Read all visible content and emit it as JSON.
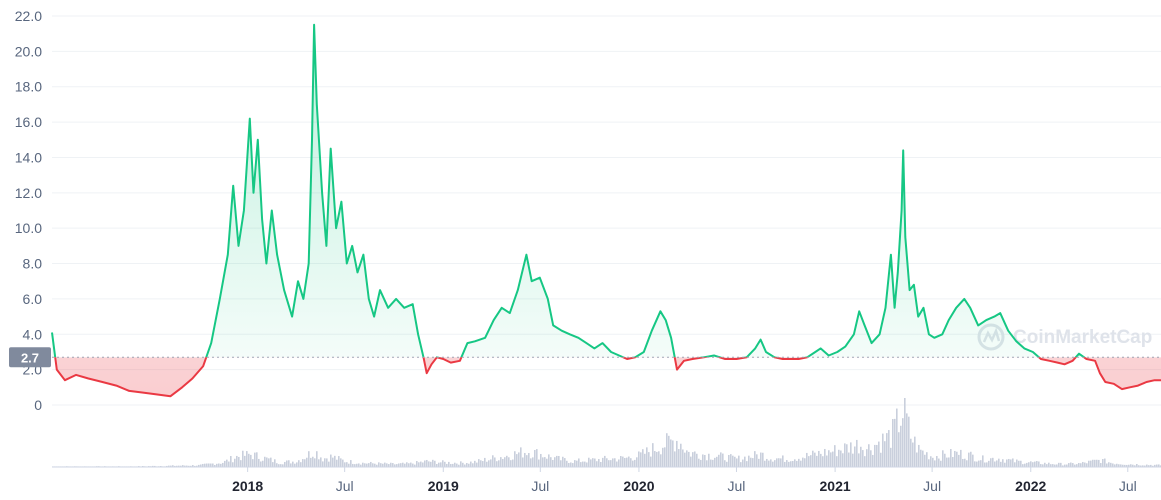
{
  "chart_data": {
    "type": "area",
    "baseline": 2.7,
    "baseline_label": "2.7",
    "watermark": "CoinMarketCap",
    "colors": {
      "above": "#16c784",
      "below": "#ea3943",
      "volume": "#c9cfdc",
      "baseline_badge": "#808a9d"
    },
    "ylim": [
      0,
      22
    ],
    "y_ticks": [
      {
        "v": 0,
        "label": "0"
      },
      {
        "v": 2,
        "label": "2.0"
      },
      {
        "v": 4,
        "label": "4.0"
      },
      {
        "v": 6,
        "label": "6.0"
      },
      {
        "v": 8,
        "label": "8.0"
      },
      {
        "v": 10,
        "label": "10.0"
      },
      {
        "v": 12,
        "label": "12.0"
      },
      {
        "v": 14,
        "label": "14.0"
      },
      {
        "v": 16,
        "label": "16.0"
      },
      {
        "v": 18,
        "label": "18.0"
      },
      {
        "v": 20,
        "label": "20.0"
      },
      {
        "v": 22,
        "label": "22.0"
      }
    ],
    "xlim": [
      "2017-01-01",
      "2022-09-01"
    ],
    "x_ticks": [
      {
        "date": "2018-01-01",
        "label": "2018",
        "major": true
      },
      {
        "date": "2018-07-01",
        "label": "Jul",
        "major": false
      },
      {
        "date": "2019-01-01",
        "label": "2019",
        "major": true
      },
      {
        "date": "2019-07-01",
        "label": "Jul",
        "major": false
      },
      {
        "date": "2020-01-01",
        "label": "2020",
        "major": true
      },
      {
        "date": "2020-07-01",
        "label": "Jul",
        "major": false
      },
      {
        "date": "2021-01-01",
        "label": "2021",
        "major": true
      },
      {
        "date": "2021-07-01",
        "label": "Jul",
        "major": false
      },
      {
        "date": "2022-01-01",
        "label": "2022",
        "major": true
      },
      {
        "date": "2022-07-01",
        "label": "Jul",
        "major": false
      }
    ],
    "price": [
      [
        "2017-01-01",
        4.1
      ],
      [
        "2017-01-10",
        2.0
      ],
      [
        "2017-01-25",
        1.4
      ],
      [
        "2017-02-15",
        1.7
      ],
      [
        "2017-03-10",
        1.5
      ],
      [
        "2017-04-05",
        1.3
      ],
      [
        "2017-05-01",
        1.1
      ],
      [
        "2017-05-25",
        0.8
      ],
      [
        "2017-06-20",
        0.7
      ],
      [
        "2017-07-15",
        0.6
      ],
      [
        "2017-08-10",
        0.5
      ],
      [
        "2017-09-01",
        1.0
      ],
      [
        "2017-09-20",
        1.5
      ],
      [
        "2017-10-10",
        2.2
      ],
      [
        "2017-10-25",
        3.5
      ],
      [
        "2017-11-10",
        6.0
      ],
      [
        "2017-11-25",
        8.5
      ],
      [
        "2017-12-05",
        12.4
      ],
      [
        "2017-12-15",
        9.0
      ],
      [
        "2017-12-25",
        11.0
      ],
      [
        "2018-01-05",
        16.2
      ],
      [
        "2018-01-12",
        12.0
      ],
      [
        "2018-01-20",
        15.0
      ],
      [
        "2018-01-28",
        10.5
      ],
      [
        "2018-02-05",
        8.0
      ],
      [
        "2018-02-15",
        11.0
      ],
      [
        "2018-02-25",
        8.5
      ],
      [
        "2018-03-10",
        6.5
      ],
      [
        "2018-03-25",
        5.0
      ],
      [
        "2018-04-05",
        7.0
      ],
      [
        "2018-04-15",
        6.0
      ],
      [
        "2018-04-25",
        8.0
      ],
      [
        "2018-05-01",
        15.0
      ],
      [
        "2018-05-05",
        21.5
      ],
      [
        "2018-05-10",
        17.0
      ],
      [
        "2018-05-20",
        12.0
      ],
      [
        "2018-05-28",
        9.0
      ],
      [
        "2018-06-05",
        14.5
      ],
      [
        "2018-06-15",
        10.0
      ],
      [
        "2018-06-25",
        11.5
      ],
      [
        "2018-07-05",
        8.0
      ],
      [
        "2018-07-15",
        9.0
      ],
      [
        "2018-07-25",
        7.5
      ],
      [
        "2018-08-05",
        8.5
      ],
      [
        "2018-08-15",
        6.0
      ],
      [
        "2018-08-25",
        5.0
      ],
      [
        "2018-09-05",
        6.5
      ],
      [
        "2018-09-20",
        5.5
      ],
      [
        "2018-10-05",
        6.0
      ],
      [
        "2018-10-20",
        5.5
      ],
      [
        "2018-11-05",
        5.7
      ],
      [
        "2018-11-15",
        4.0
      ],
      [
        "2018-11-25",
        2.7
      ],
      [
        "2018-12-01",
        1.8
      ],
      [
        "2018-12-10",
        2.3
      ],
      [
        "2018-12-20",
        2.7
      ],
      [
        "2019-01-01",
        2.6
      ],
      [
        "2019-01-15",
        2.4
      ],
      [
        "2019-02-01",
        2.5
      ],
      [
        "2019-02-15",
        3.5
      ],
      [
        "2019-03-01",
        3.6
      ],
      [
        "2019-03-20",
        3.8
      ],
      [
        "2019-04-05",
        4.8
      ],
      [
        "2019-04-20",
        5.5
      ],
      [
        "2019-05-05",
        5.2
      ],
      [
        "2019-05-20",
        6.5
      ],
      [
        "2019-06-05",
        8.5
      ],
      [
        "2019-06-15",
        7.0
      ],
      [
        "2019-06-30",
        7.2
      ],
      [
        "2019-07-15",
        6.0
      ],
      [
        "2019-07-25",
        4.5
      ],
      [
        "2019-08-10",
        4.2
      ],
      [
        "2019-08-25",
        4.0
      ],
      [
        "2019-09-10",
        3.8
      ],
      [
        "2019-09-25",
        3.5
      ],
      [
        "2019-10-10",
        3.2
      ],
      [
        "2019-10-25",
        3.5
      ],
      [
        "2019-11-10",
        3.0
      ],
      [
        "2019-11-25",
        2.8
      ],
      [
        "2019-12-10",
        2.6
      ],
      [
        "2019-12-25",
        2.7
      ],
      [
        "2020-01-10",
        3.0
      ],
      [
        "2020-01-25",
        4.2
      ],
      [
        "2020-02-10",
        5.3
      ],
      [
        "2020-02-20",
        4.8
      ],
      [
        "2020-03-01",
        3.8
      ],
      [
        "2020-03-12",
        2.0
      ],
      [
        "2020-03-25",
        2.5
      ],
      [
        "2020-04-10",
        2.6
      ],
      [
        "2020-05-01",
        2.7
      ],
      [
        "2020-05-20",
        2.8
      ],
      [
        "2020-06-10",
        2.6
      ],
      [
        "2020-07-01",
        2.6
      ],
      [
        "2020-07-20",
        2.7
      ],
      [
        "2020-08-05",
        3.2
      ],
      [
        "2020-08-15",
        3.7
      ],
      [
        "2020-08-25",
        3.0
      ],
      [
        "2020-09-10",
        2.7
      ],
      [
        "2020-09-25",
        2.6
      ],
      [
        "2020-10-10",
        2.6
      ],
      [
        "2020-10-25",
        2.6
      ],
      [
        "2020-11-10",
        2.7
      ],
      [
        "2020-11-25",
        3.0
      ],
      [
        "2020-12-05",
        3.2
      ],
      [
        "2020-12-20",
        2.8
      ],
      [
        "2021-01-05",
        3.0
      ],
      [
        "2021-01-20",
        3.3
      ],
      [
        "2021-02-05",
        4.0
      ],
      [
        "2021-02-15",
        5.3
      ],
      [
        "2021-02-25",
        4.5
      ],
      [
        "2021-03-10",
        3.5
      ],
      [
        "2021-03-25",
        4.0
      ],
      [
        "2021-04-05",
        5.5
      ],
      [
        "2021-04-15",
        8.5
      ],
      [
        "2021-04-22",
        5.5
      ],
      [
        "2021-04-28",
        7.5
      ],
      [
        "2021-05-05",
        11.0
      ],
      [
        "2021-05-08",
        14.4
      ],
      [
        "2021-05-12",
        9.5
      ],
      [
        "2021-05-20",
        6.5
      ],
      [
        "2021-05-28",
        6.8
      ],
      [
        "2021-06-05",
        5.0
      ],
      [
        "2021-06-15",
        5.5
      ],
      [
        "2021-06-25",
        4.0
      ],
      [
        "2021-07-05",
        3.8
      ],
      [
        "2021-07-20",
        4.0
      ],
      [
        "2021-08-01",
        4.8
      ],
      [
        "2021-08-15",
        5.5
      ],
      [
        "2021-08-30",
        6.0
      ],
      [
        "2021-09-10",
        5.5
      ],
      [
        "2021-09-25",
        4.5
      ],
      [
        "2021-10-10",
        4.8
      ],
      [
        "2021-10-25",
        5.0
      ],
      [
        "2021-11-05",
        5.2
      ],
      [
        "2021-11-20",
        4.2
      ],
      [
        "2021-12-05",
        3.6
      ],
      [
        "2021-12-20",
        3.2
      ],
      [
        "2022-01-05",
        3.0
      ],
      [
        "2022-01-20",
        2.6
      ],
      [
        "2022-02-05",
        2.5
      ],
      [
        "2022-02-20",
        2.4
      ],
      [
        "2022-03-05",
        2.3
      ],
      [
        "2022-03-20",
        2.5
      ],
      [
        "2022-04-01",
        2.9
      ],
      [
        "2022-04-15",
        2.6
      ],
      [
        "2022-05-01",
        2.5
      ],
      [
        "2022-05-10",
        1.8
      ],
      [
        "2022-05-20",
        1.3
      ],
      [
        "2022-06-05",
        1.2
      ],
      [
        "2022-06-20",
        0.9
      ],
      [
        "2022-07-05",
        1.0
      ],
      [
        "2022-07-20",
        1.1
      ],
      [
        "2022-08-05",
        1.3
      ],
      [
        "2022-08-20",
        1.4
      ],
      [
        "2022-09-01",
        1.4
      ]
    ],
    "volume": [
      [
        "2017-01-01",
        0.01
      ],
      [
        "2017-06-01",
        0.01
      ],
      [
        "2017-10-01",
        0.03
      ],
      [
        "2017-11-15",
        0.08
      ],
      [
        "2017-12-10",
        0.18
      ],
      [
        "2018-01-05",
        0.22
      ],
      [
        "2018-02-01",
        0.15
      ],
      [
        "2018-03-01",
        0.08
      ],
      [
        "2018-04-01",
        0.1
      ],
      [
        "2018-05-05",
        0.28
      ],
      [
        "2018-05-20",
        0.15
      ],
      [
        "2018-06-05",
        0.18
      ],
      [
        "2018-07-01",
        0.1
      ],
      [
        "2018-08-01",
        0.07
      ],
      [
        "2018-09-01",
        0.06
      ],
      [
        "2018-10-01",
        0.05
      ],
      [
        "2018-11-01",
        0.06
      ],
      [
        "2018-12-01",
        0.1
      ],
      [
        "2019-01-01",
        0.08
      ],
      [
        "2019-02-01",
        0.07
      ],
      [
        "2019-03-01",
        0.09
      ],
      [
        "2019-04-01",
        0.15
      ],
      [
        "2019-05-01",
        0.2
      ],
      [
        "2019-06-05",
        0.28
      ],
      [
        "2019-07-01",
        0.22
      ],
      [
        "2019-08-01",
        0.14
      ],
      [
        "2019-09-01",
        0.1
      ],
      [
        "2019-10-01",
        0.12
      ],
      [
        "2019-11-01",
        0.14
      ],
      [
        "2019-12-01",
        0.15
      ],
      [
        "2020-01-01",
        0.2
      ],
      [
        "2020-02-10",
        0.38
      ],
      [
        "2020-03-12",
        0.48
      ],
      [
        "2020-04-01",
        0.25
      ],
      [
        "2020-05-01",
        0.22
      ],
      [
        "2020-06-01",
        0.18
      ],
      [
        "2020-07-01",
        0.14
      ],
      [
        "2020-08-15",
        0.22
      ],
      [
        "2020-09-01",
        0.16
      ],
      [
        "2020-10-01",
        0.14
      ],
      [
        "2020-11-01",
        0.18
      ],
      [
        "2020-12-05",
        0.24
      ],
      [
        "2021-01-05",
        0.3
      ],
      [
        "2021-02-15",
        0.4
      ],
      [
        "2021-03-01",
        0.32
      ],
      [
        "2021-04-15",
        0.55
      ],
      [
        "2021-05-08",
        1.0
      ],
      [
        "2021-05-20",
        0.55
      ],
      [
        "2021-06-05",
        0.3
      ],
      [
        "2021-07-01",
        0.18
      ],
      [
        "2021-08-15",
        0.24
      ],
      [
        "2021-09-10",
        0.2
      ],
      [
        "2021-10-01",
        0.14
      ],
      [
        "2021-11-01",
        0.15
      ],
      [
        "2021-12-01",
        0.1
      ],
      [
        "2022-01-01",
        0.08
      ],
      [
        "2022-02-01",
        0.06
      ],
      [
        "2022-03-01",
        0.05
      ],
      [
        "2022-04-01",
        0.06
      ],
      [
        "2022-05-10",
        0.12
      ],
      [
        "2022-06-01",
        0.07
      ],
      [
        "2022-07-01",
        0.05
      ],
      [
        "2022-08-01",
        0.04
      ],
      [
        "2022-09-01",
        0.03
      ]
    ]
  }
}
